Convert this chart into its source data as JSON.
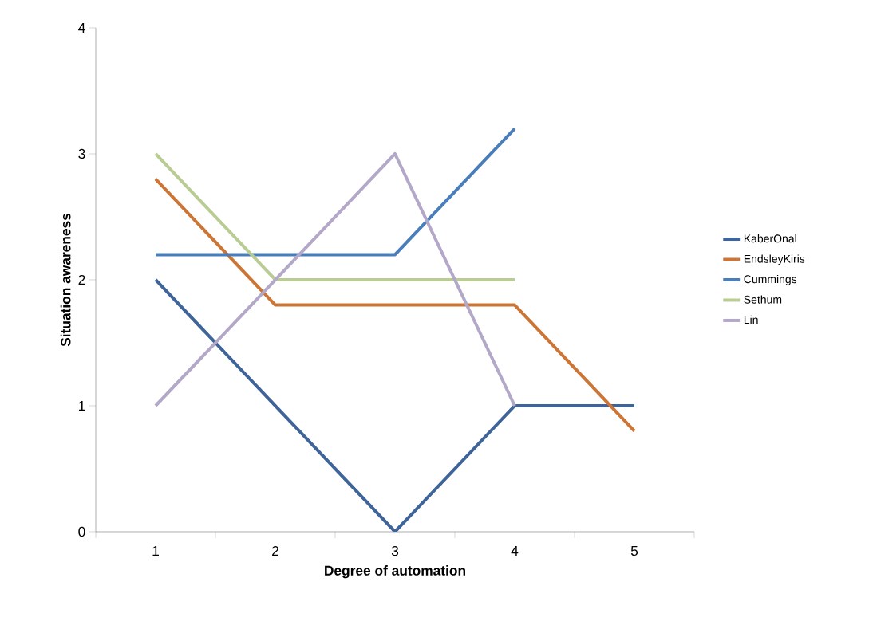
{
  "chart_data": {
    "type": "line",
    "xlabel": "Degree of automation",
    "ylabel": "Situation awareness",
    "categories": [
      "1",
      "2",
      "3",
      "4",
      "5"
    ],
    "series": [
      {
        "name": "KaberOnal",
        "color": "#3e6499",
        "values": [
          2,
          1,
          0,
          1,
          1
        ]
      },
      {
        "name": "EndsleyKiris",
        "color": "#cc7534",
        "values": [
          2.8,
          1.8,
          1.8,
          1.8,
          0.8
        ]
      },
      {
        "name": "Cummings",
        "color": "#4a7ebb",
        "values": [
          2.2,
          2.2,
          2.2,
          3.2,
          null
        ]
      },
      {
        "name": "Sethum",
        "color": "#b9cc94",
        "values": [
          3,
          2,
          2,
          2,
          null
        ]
      },
      {
        "name": "Lin",
        "color": "#b3a8c8",
        "values": [
          1,
          2,
          3,
          1,
          null
        ]
      }
    ],
    "ylim": [
      0,
      4
    ],
    "yticks": [
      0,
      1,
      2,
      3,
      4
    ],
    "grid": false,
    "legend": "right",
    "marker": "none",
    "line_style": "solid"
  }
}
